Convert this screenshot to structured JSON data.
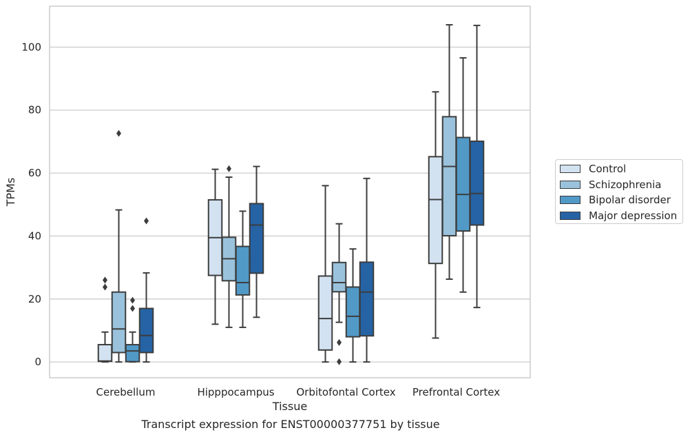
{
  "caption": "Transcript expression for ENST00000377751 by tissue",
  "colors": [
    "#d2e2f1",
    "#9ac2dc",
    "#5199c7",
    "#2563a5"
  ],
  "chart_data": {
    "type": "box",
    "xlabel": "Tissue",
    "ylabel": "TPMs",
    "ylim": [
      -5,
      113
    ],
    "yticks": [
      0,
      20,
      40,
      60,
      80,
      100
    ],
    "grid": "horizontal",
    "legend_position": "right",
    "categories": [
      "Cerebellum",
      "Hipppocampus",
      "Orbitofontal Cortex",
      "Prefrontal Cortex"
    ],
    "series": [
      {
        "name": "Control",
        "boxes": [
          {
            "whisker_low": 0,
            "q1": 0.2,
            "median": 0.3,
            "q3": 5.5,
            "whisker_high": 9.5,
            "outliers": [
              23.8,
              26.0
            ]
          },
          {
            "whisker_low": 12.0,
            "q1": 27.5,
            "median": 39.5,
            "q3": 51.5,
            "whisker_high": 61.2,
            "outliers": []
          },
          {
            "whisker_low": 0,
            "q1": 3.8,
            "median": 13.8,
            "q3": 27.3,
            "whisker_high": 56.0,
            "outliers": []
          },
          {
            "whisker_low": 7.6,
            "q1": 31.3,
            "median": 51.6,
            "q3": 65.2,
            "whisker_high": 85.8,
            "outliers": []
          }
        ]
      },
      {
        "name": "Schizophrenia",
        "boxes": [
          {
            "whisker_low": 0,
            "q1": 3.0,
            "median": 10.5,
            "q3": 22.2,
            "whisker_high": 48.3,
            "outliers": [
              72.6
            ]
          },
          {
            "whisker_low": 11.0,
            "q1": 25.8,
            "median": 32.8,
            "q3": 39.6,
            "whisker_high": 58.7,
            "outliers": [
              61.4
            ]
          },
          {
            "whisker_low": 12.6,
            "q1": 22.3,
            "median": 25.2,
            "q3": 31.6,
            "whisker_high": 43.9,
            "outliers": [
              6.2,
              0.1
            ]
          },
          {
            "whisker_low": 26.3,
            "q1": 40.1,
            "median": 62.1,
            "q3": 77.9,
            "whisker_high": 107.1,
            "outliers": []
          }
        ]
      },
      {
        "name": "Bipolar disorder",
        "boxes": [
          {
            "whisker_low": 0,
            "q1": 0.1,
            "median": 3.5,
            "q3": 5.5,
            "whisker_high": 9.5,
            "outliers": [
              17.0,
              19.6
            ]
          },
          {
            "whisker_low": 11.0,
            "q1": 21.3,
            "median": 25.2,
            "q3": 36.7,
            "whisker_high": 47.9,
            "outliers": []
          },
          {
            "whisker_low": 0,
            "q1": 8.0,
            "median": 14.5,
            "q3": 23.8,
            "whisker_high": 35.9,
            "outliers": []
          },
          {
            "whisker_low": 22.2,
            "q1": 41.6,
            "median": 53.2,
            "q3": 71.3,
            "whisker_high": 96.6,
            "outliers": []
          }
        ]
      },
      {
        "name": "Major depression",
        "boxes": [
          {
            "whisker_low": 0,
            "q1": 3.0,
            "median": 8.4,
            "q3": 17.0,
            "whisker_high": 28.3,
            "outliers": [
              44.8
            ]
          },
          {
            "whisker_low": 14.2,
            "q1": 28.2,
            "median": 43.5,
            "q3": 50.3,
            "whisker_high": 62.1,
            "outliers": []
          },
          {
            "whisker_low": 0,
            "q1": 8.3,
            "median": 22.2,
            "q3": 31.7,
            "whisker_high": 58.3,
            "outliers": []
          },
          {
            "whisker_low": 17.3,
            "q1": 43.5,
            "median": 53.5,
            "q3": 70.1,
            "whisker_high": 106.9,
            "outliers": []
          }
        ]
      }
    ]
  }
}
